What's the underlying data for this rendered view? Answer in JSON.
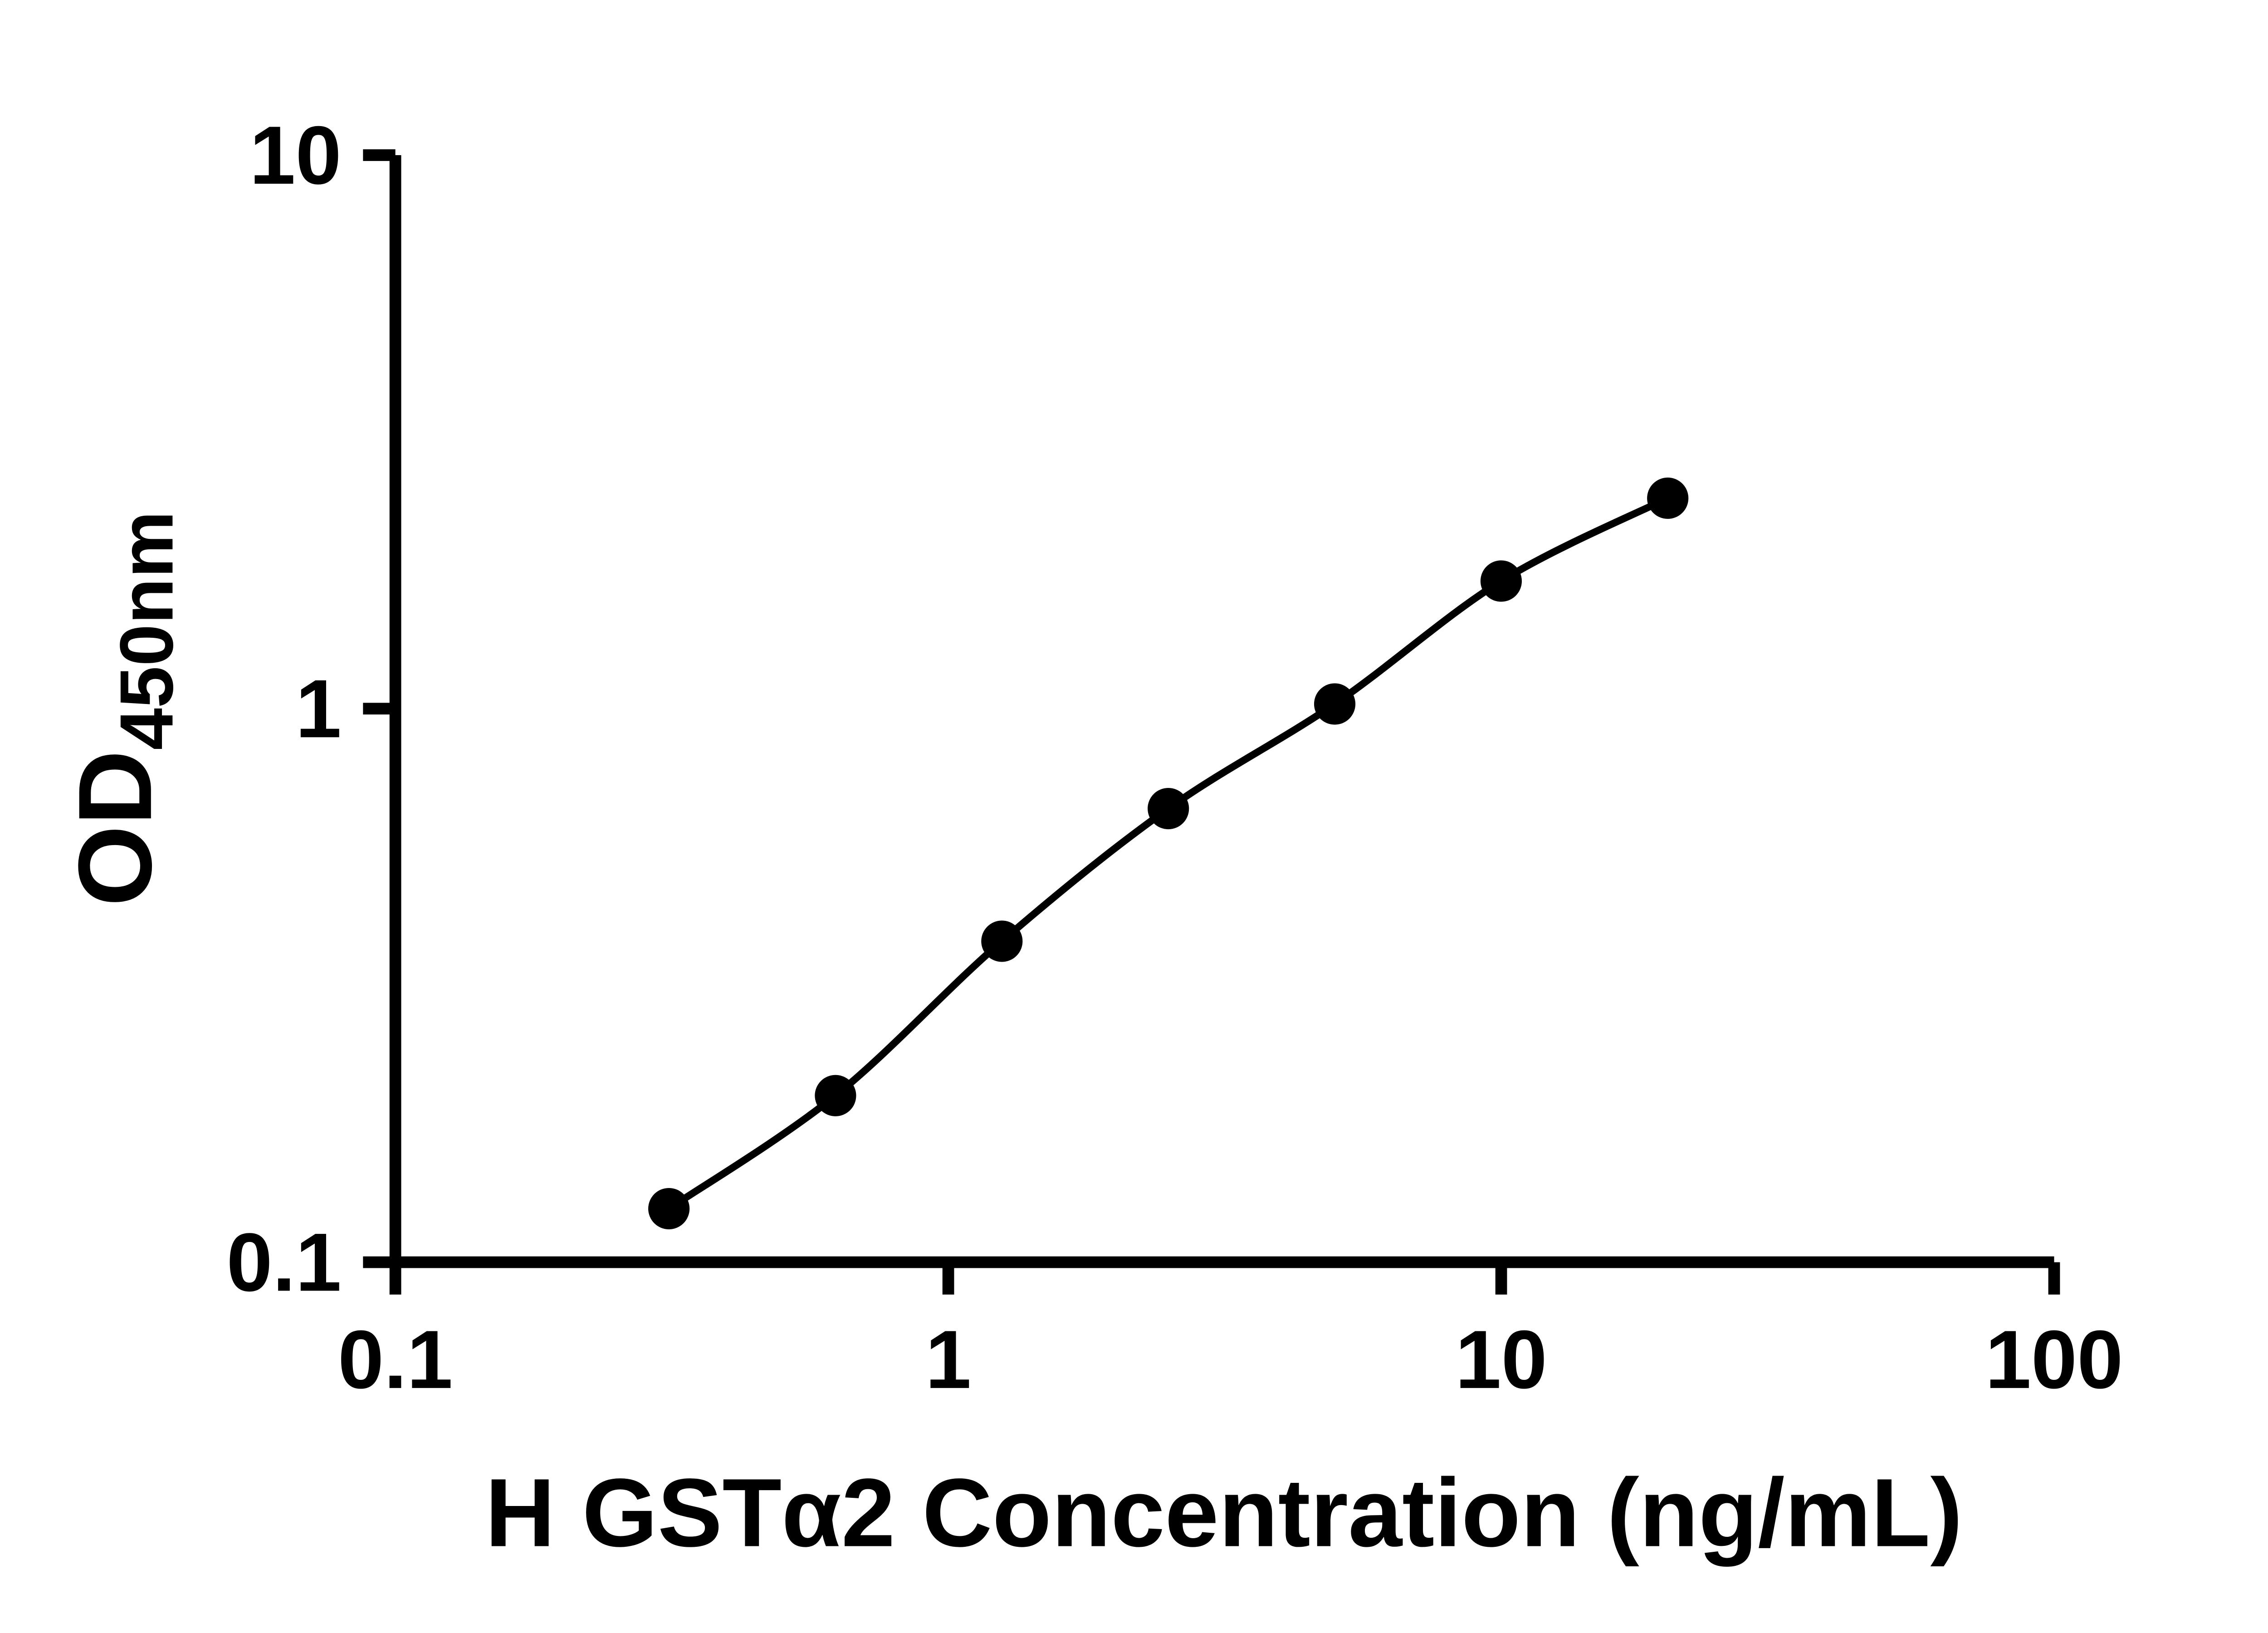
{
  "chart_data": {
    "type": "line",
    "title": "",
    "xlabel": "H GSTα2 Concentration (ng/mL)",
    "ylabel": "OD450nm",
    "ylabel_main": "OD",
    "ylabel_sub": "450nm",
    "x_scale": "log10",
    "y_scale": "log10",
    "xlim": [
      0.1,
      100
    ],
    "ylim": [
      0.1,
      10
    ],
    "x_ticks": [
      0.1,
      1,
      10,
      100
    ],
    "x_tick_labels": [
      "0.1",
      "1",
      "10",
      "100"
    ],
    "y_ticks": [
      0.1,
      1,
      10
    ],
    "y_tick_labels": [
      "0.1",
      "1",
      "10"
    ],
    "grid": false,
    "legend": "none",
    "series": [
      {
        "marker": "filled-circle",
        "line": "smooth",
        "color": "#000000",
        "x": [
          0.3125,
          0.625,
          1.25,
          2.5,
          5,
          10,
          20
        ],
        "y": [
          0.125,
          0.2,
          0.38,
          0.66,
          1.02,
          1.7,
          2.4
        ]
      }
    ]
  },
  "colors": {
    "background": "#ffffff",
    "axis": "#000000",
    "marker": "#000000",
    "line": "#000000",
    "text": "#000000"
  }
}
